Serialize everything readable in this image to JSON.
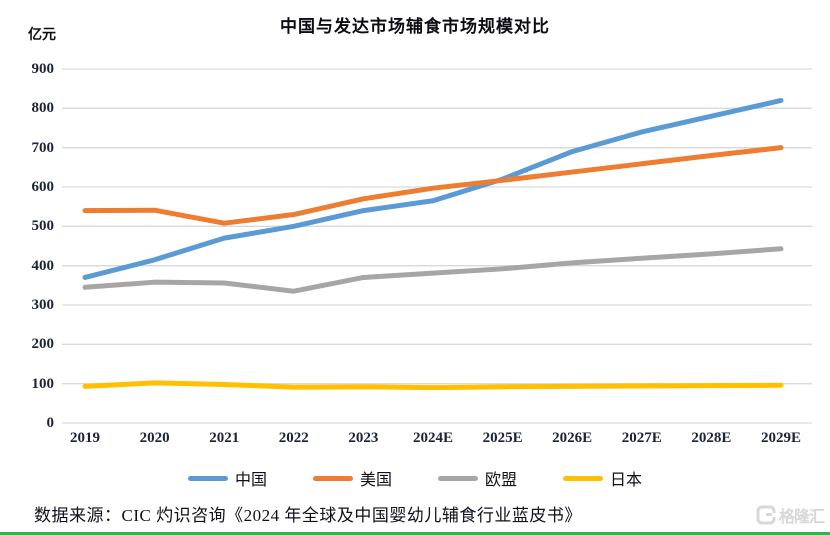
{
  "header": {
    "title": "中国与发达市场辅食市场规模对比",
    "unit_label": "亿元"
  },
  "chart_data": {
    "type": "line",
    "title": "中国与发达市场辅食市场规模对比",
    "ylabel": "亿元",
    "ylim": [
      0,
      900
    ],
    "ytick_step": 100,
    "grid": true,
    "legend_position": "bottom",
    "categories": [
      "2019",
      "2020",
      "2021",
      "2022",
      "2023",
      "2024E",
      "2025E",
      "2026E",
      "2027E",
      "2028E",
      "2029E"
    ],
    "series": [
      {
        "name": "中国",
        "color": "#5B9BD5",
        "values": [
          370,
          415,
          470,
          500,
          540,
          565,
          620,
          690,
          740,
          780,
          820
        ]
      },
      {
        "name": "美国",
        "color": "#ED7D31",
        "values": [
          540,
          541,
          508,
          530,
          570,
          597,
          617,
          638,
          659,
          680,
          700
        ]
      },
      {
        "name": "欧盟",
        "color": "#A6A6A6",
        "values": [
          345,
          358,
          356,
          335,
          370,
          381,
          392,
          407,
          419,
          430,
          443
        ]
      },
      {
        "name": "日本",
        "color": "#FFC000",
        "values": [
          93,
          102,
          98,
          91,
          92,
          90,
          92,
          93,
          94,
          95,
          96
        ]
      }
    ]
  },
  "footer": {
    "source": "数据来源：CIC 灼识咨询《2024 年全球及中国婴幼儿辅食行业蓝皮书》",
    "logo_text": "格隆汇",
    "accent_green": "#3BAF4A"
  },
  "colors": {
    "gridline": "#D9D9D9",
    "tick_text": "#1B2436"
  }
}
